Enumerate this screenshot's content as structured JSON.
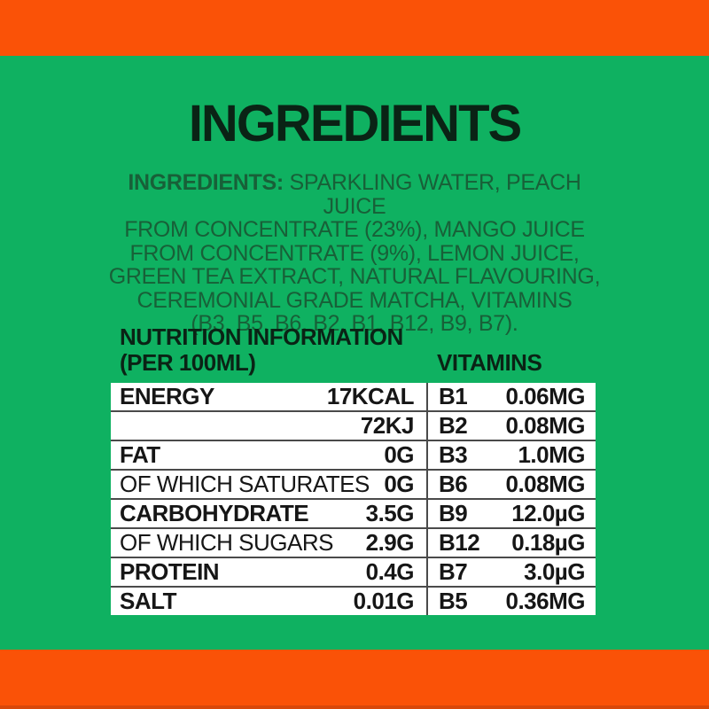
{
  "colors": {
    "background_green": "#0FB161",
    "band_orange": "#FA5207",
    "heading_dark": "#0A2315",
    "paragraph_green": "#186038",
    "table_background": "#FFFFFF",
    "table_text": "#161616",
    "divider_gray": "#4A4A4A"
  },
  "title": "INGREDIENTS",
  "ingredients": {
    "prefix": "INGREDIENTS:",
    "line1_rest": " SPARKLING WATER, PEACH JUICE",
    "lines": [
      "FROM CONCENTRATE (23%), MANGO JUICE",
      "FROM CONCENTRATE (9%), LEMON JUICE,",
      "GREEN TEA EXTRACT, NATURAL FLAVOURING,",
      "CEREMONIAL GRADE MATCHA, VITAMINS",
      "(B3, B5, B6, B2, B1, B12, B9, B7)."
    ]
  },
  "nutrition_header": {
    "line1": "NUTRITION INFORMATION",
    "line2": "(PER 100ML)",
    "vitamins": "VITAMINS"
  },
  "nutrition_table": {
    "rows": [
      {
        "label": "ENERGY",
        "label_bold": true,
        "value": "17KCAL",
        "vitamin": "B1",
        "vitamin_value": "0.06MG"
      },
      {
        "label": "",
        "label_bold": false,
        "value": "72KJ",
        "vitamin": "B2",
        "vitamin_value": "0.08MG"
      },
      {
        "label": "FAT",
        "label_bold": true,
        "value": "0G",
        "vitamin": "B3",
        "vitamin_value": "1.0MG"
      },
      {
        "label": "OF WHICH SATURATES",
        "label_bold": false,
        "value": "0G",
        "vitamin": "B6",
        "vitamin_value": "0.08MG"
      },
      {
        "label": "CARBOHYDRATE",
        "label_bold": true,
        "value": "3.5G",
        "vitamin": "B9",
        "vitamin_value": "12.0µG"
      },
      {
        "label": "OF WHICH SUGARS",
        "label_bold": false,
        "value": "2.9G",
        "vitamin": "B12",
        "vitamin_value": "0.18µG"
      },
      {
        "label": "PROTEIN",
        "label_bold": true,
        "value": "0.4G",
        "vitamin": "B7",
        "vitamin_value": "3.0µG"
      },
      {
        "label": "SALT",
        "label_bold": true,
        "value": "0.01G",
        "vitamin": "B5",
        "vitamin_value": "0.36MG"
      }
    ]
  }
}
